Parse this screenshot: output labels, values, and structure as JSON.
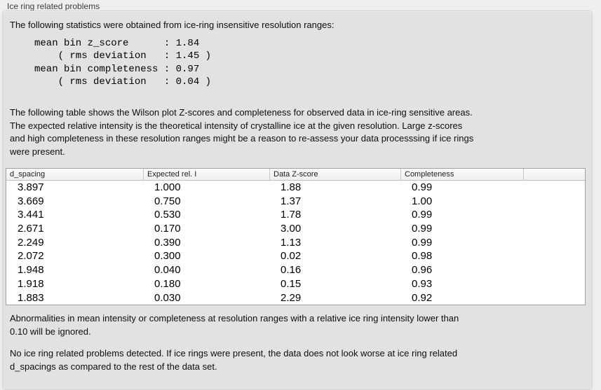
{
  "panel": {
    "title": "Ice ring related problems"
  },
  "intro": {
    "text": "The following statistics were obtained from ice-ring insensitive resolution ranges:"
  },
  "stats_block": {
    "lines": [
      "mean bin z_score      : 1.84",
      "    ( rms deviation   : 1.45 )",
      "mean bin completeness : 0.97",
      "    ( rms deviation   : 0.04 )"
    ]
  },
  "description": {
    "lines": [
      "The following table shows the Wilson plot Z-scores and completeness for observed data in ice-ring sensitive areas.",
      "The expected relative intensity is the theoretical intensity of crystalline ice at the given resolution. Large z-scores",
      "and high completeness in these resolution ranges might be a reason to re-assess your data processsing if ice rings",
      "were present."
    ]
  },
  "table": {
    "columns": [
      "d_spacing",
      "Expected rel. I",
      "Data Z-score",
      "Completeness"
    ],
    "rows": [
      [
        "3.897",
        "1.000",
        "1.88",
        "0.99"
      ],
      [
        "3.669",
        "0.750",
        "1.37",
        "1.00"
      ],
      [
        "3.441",
        "0.530",
        "1.78",
        "0.99"
      ],
      [
        "2.671",
        "0.170",
        "3.00",
        "0.99"
      ],
      [
        "2.249",
        "0.390",
        "1.13",
        "0.99"
      ],
      [
        "2.072",
        "0.300",
        "0.02",
        "0.98"
      ],
      [
        "1.948",
        "0.040",
        "0.16",
        "0.96"
      ],
      [
        "1.918",
        "0.180",
        "0.15",
        "0.93"
      ],
      [
        "1.883",
        "0.030",
        "2.29",
        "0.92"
      ]
    ]
  },
  "notes": {
    "ignore_lines": [
      "Abnormalities in mean intensity or completeness at resolution ranges with a relative ice ring intensity lower than",
      "0.10 will be ignored."
    ],
    "conclusion_lines": [
      "No ice ring related problems detected. If ice rings were present, the data does not look worse at ice ring related",
      "d_spacings as compared to the rest of the data set."
    ]
  }
}
